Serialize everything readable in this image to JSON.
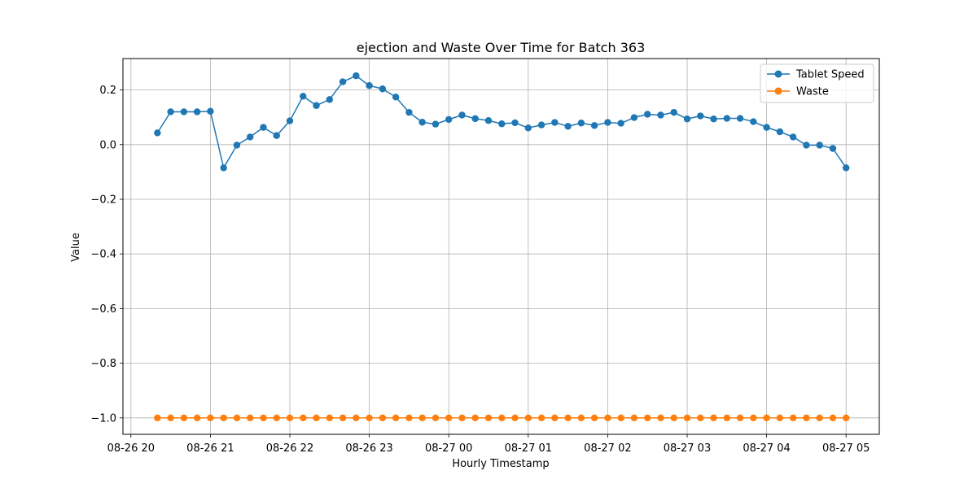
{
  "chart_data": {
    "type": "line",
    "title": "ejection and Waste Over Time for Batch 363",
    "xlabel": "Hourly Timestamp",
    "ylabel": "Value",
    "x_tick_labels": [
      "08-26 20",
      "08-26 21",
      "08-26 22",
      "08-26 23",
      "08-27 00",
      "08-27 01",
      "08-27 02",
      "08-27 03",
      "08-27 04",
      "08-27 05"
    ],
    "y_tick_labels": [
      "−1.0",
      "−0.8",
      "−0.6",
      "−0.4",
      "−0.2",
      "0.0",
      "0.2"
    ],
    "x_start": "2024-08-26 20:20",
    "x_step_minutes": 10,
    "ylim": [
      -1.05,
      0.315
    ],
    "grid": true,
    "legend_position": "top-right",
    "colors": {
      "Tablet Speed": "#1f77b4",
      "Waste": "#ff7f0e"
    },
    "series": [
      {
        "name": "Tablet Speed",
        "values": [
          0.043,
          0.12,
          0.12,
          0.12,
          0.122,
          -0.085,
          -0.002,
          0.028,
          0.063,
          0.033,
          0.087,
          0.177,
          0.143,
          0.165,
          0.23,
          0.252,
          0.216,
          0.204,
          0.174,
          0.118,
          0.082,
          0.075,
          0.092,
          0.108,
          0.095,
          0.088,
          0.076,
          0.08,
          0.061,
          0.072,
          0.081,
          0.067,
          0.079,
          0.07,
          0.081,
          0.078,
          0.099,
          0.111,
          0.108,
          0.118,
          0.094,
          0.105,
          0.094,
          0.096,
          0.096,
          0.084,
          0.063,
          0.047,
          0.028,
          -0.002,
          -0.002,
          -0.014,
          -0.085
        ]
      },
      {
        "name": "Waste",
        "values": [
          -1.0,
          -1.0,
          -1.0,
          -1.0,
          -1.0,
          -1.0,
          -1.0,
          -1.0,
          -1.0,
          -1.0,
          -1.0,
          -1.0,
          -1.0,
          -1.0,
          -1.0,
          -1.0,
          -1.0,
          -1.0,
          -1.0,
          -1.0,
          -1.0,
          -1.0,
          -1.0,
          -1.0,
          -1.0,
          -1.0,
          -1.0,
          -1.0,
          -1.0,
          -1.0,
          -1.0,
          -1.0,
          -1.0,
          -1.0,
          -1.0,
          -1.0,
          -1.0,
          -1.0,
          -1.0,
          -1.0,
          -1.0,
          -1.0,
          -1.0,
          -1.0,
          -1.0,
          -1.0,
          -1.0,
          -1.0,
          -1.0,
          -1.0,
          -1.0,
          -1.0,
          -1.0
        ]
      }
    ]
  }
}
